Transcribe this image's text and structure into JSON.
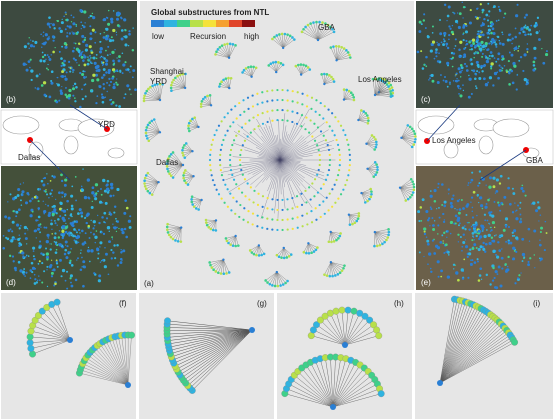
{
  "title": "Global substructures from NTL",
  "colorbar": {
    "low": "low",
    "middle": "Recursion",
    "high": "high"
  },
  "center_labels": {
    "gba": "GBA",
    "shanghai": [
      "Shanghai,",
      "YRD"
    ],
    "los_angeles": "Los Angeles",
    "dallas": "Dallas"
  },
  "left_map_labels": {
    "yrd": "YRD",
    "dallas": "Dallas"
  },
  "right_map_labels": {
    "los_angeles": "Los Angeles",
    "gba": "GBA"
  },
  "panel_labels": {
    "a": "(a)",
    "b": "(b)",
    "c": "(c)",
    "d": "(d)",
    "e": "(e)",
    "f": "(f)",
    "g": "(g)",
    "h": "(h)",
    "i": "(i)"
  }
}
